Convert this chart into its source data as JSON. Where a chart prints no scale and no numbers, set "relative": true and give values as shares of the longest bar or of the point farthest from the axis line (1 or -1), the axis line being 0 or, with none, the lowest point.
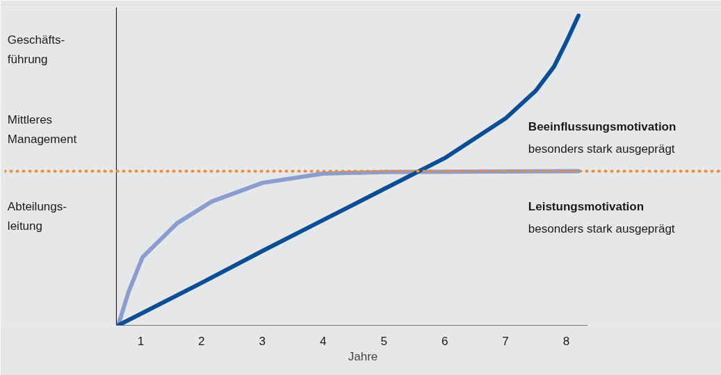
{
  "chart_data": {
    "type": "line",
    "relative": true,
    "xlabel": "Jahre",
    "xlim": [
      0.6,
      8.35
    ],
    "xticks": [
      1,
      2,
      3,
      4,
      5,
      6,
      7,
      8
    ],
    "grid": false,
    "marker": "none",
    "line_style": "solid",
    "series": [
      {
        "color": "#8a9dcf",
        "x": [
          0.63,
          0.8,
          1.03,
          1.6,
          2.17,
          3,
          4,
          5,
          8.2
        ],
        "values": [
          0,
          0.108,
          0.22,
          0.33,
          0.4,
          0.46,
          0.49,
          0.495,
          0.498
        ]
      },
      {
        "color": "#0a4f96",
        "x": [
          0.63,
          2,
          3,
          4,
          5,
          6,
          7,
          7.5,
          7.8,
          8,
          8.2
        ],
        "values": [
          0,
          0.137,
          0.24,
          0.34,
          0.44,
          0.54,
          0.668,
          0.758,
          0.836,
          0.915,
          1
        ]
      }
    ],
    "ref_lines": [
      {
        "axis": "y",
        "value": 0.498,
        "color": "#f08a30",
        "line_style": "dotted"
      }
    ],
    "annotations": [
      "Geschäfts-\nführung",
      "Mittleres\nManagement",
      "Abteilungs-\nleitung",
      "Beeinflussungsmotivation",
      "besonders stark ausgeprägt",
      "Leistungsmotivation",
      "besonders stark ausgeprägt"
    ]
  }
}
